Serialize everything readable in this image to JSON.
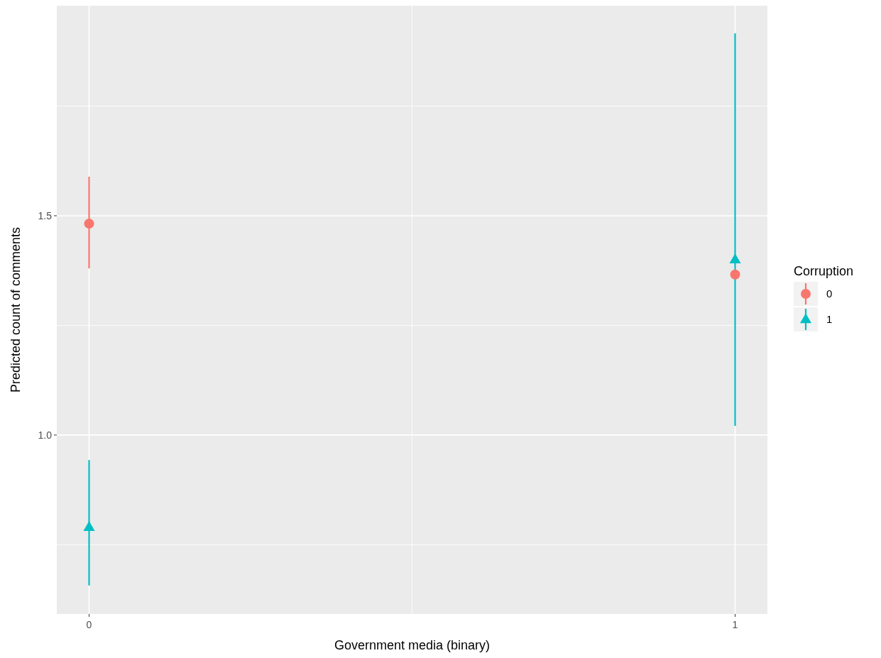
{
  "chart_data": {
    "type": "scatter",
    "xlabel": "Government media (binary)",
    "ylabel": "Predicted count of comments",
    "legend_title": "Corruption",
    "x": [
      0,
      1
    ],
    "series": [
      {
        "name": "0",
        "color": "#f8766d",
        "marker": "circle",
        "values": [
          1.482,
          1.366
        ],
        "errors": [
          [
            1.38,
            1.589
          ],
          null
        ]
      },
      {
        "name": "1",
        "color": "#00bfc4",
        "marker": "triangle",
        "values": [
          0.79,
          1.4
        ],
        "errors": [
          [
            0.657,
            0.943
          ],
          [
            1.021,
            1.916
          ]
        ]
      }
    ],
    "xlim": [
      -0.05,
      1.05
    ],
    "xticks": [
      0,
      {
        "value": 0.5,
        "label": null
      },
      1
    ],
    "ylim": [
      0.592,
      1.979
    ],
    "yticks": [
      {
        "value": 0.75,
        "label": null
      },
      {
        "value": 1,
        "label": "1.0"
      },
      {
        "value": 1.25,
        "label": null
      },
      1.5,
      {
        "value": 1.75,
        "label": null
      }
    ],
    "grid": true,
    "legend": "right"
  }
}
